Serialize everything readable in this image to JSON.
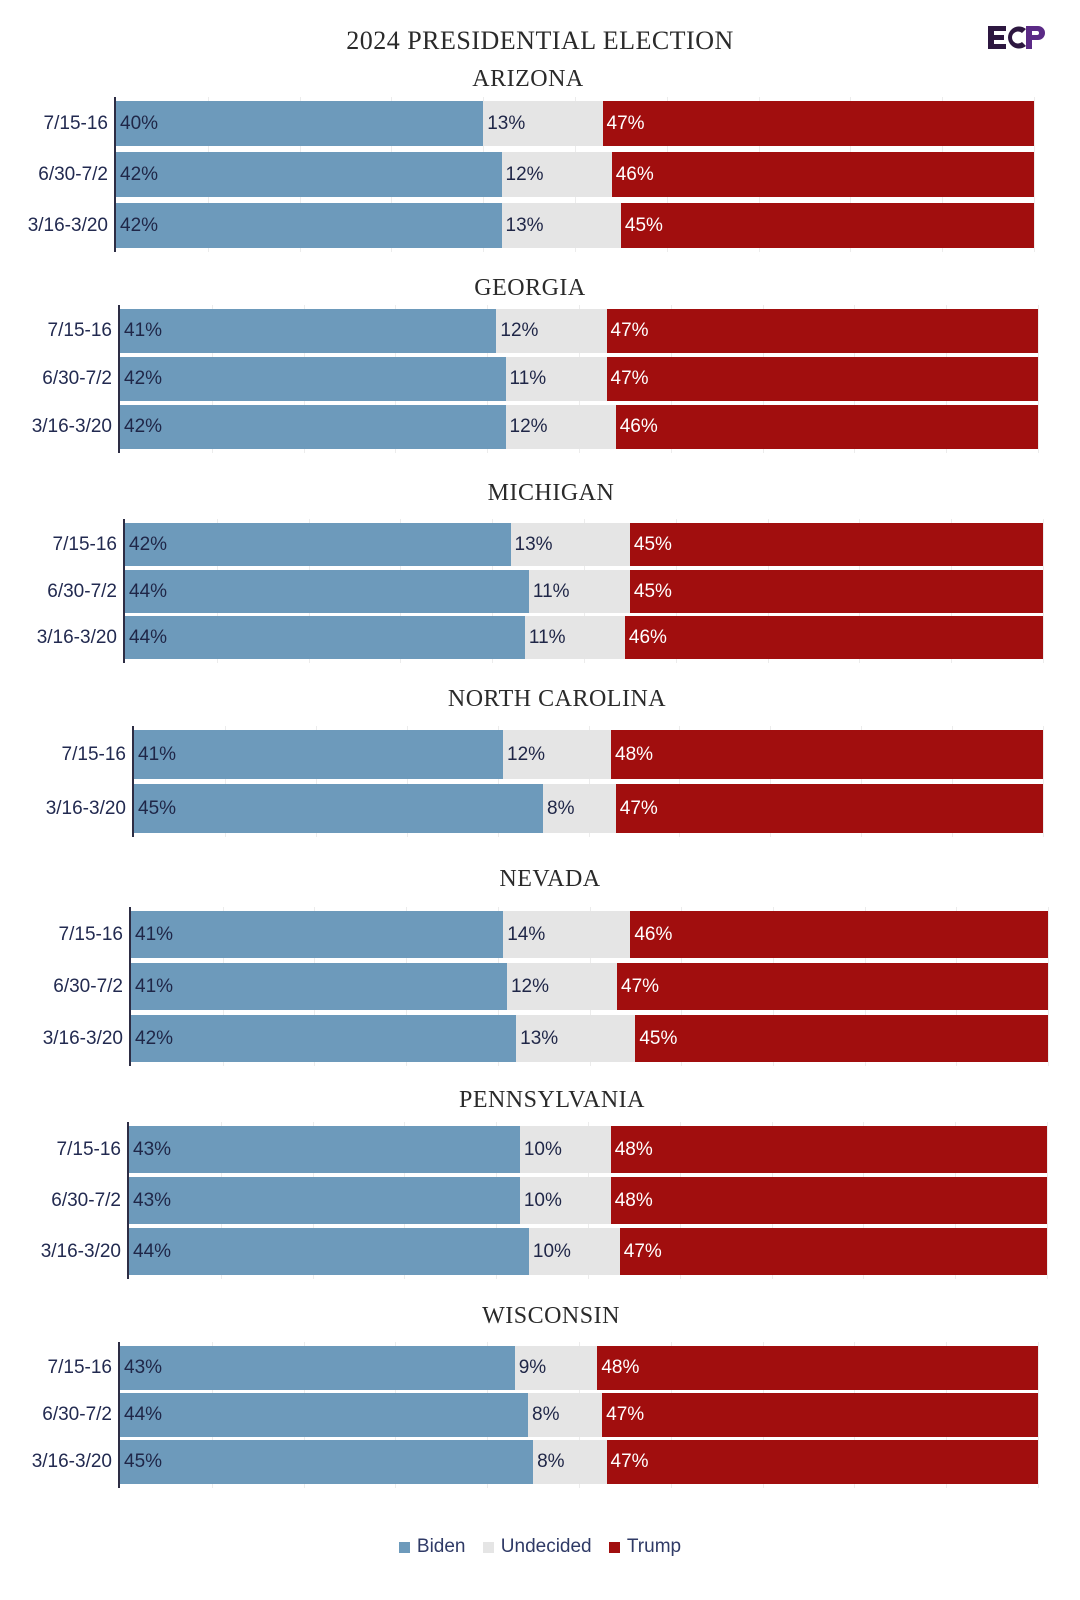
{
  "title": "2024 PRESIDENTIAL ELECTION",
  "logo_text": "ECP",
  "colors": {
    "biden": "#6d9abb",
    "undecided": "#e5e5e5",
    "trump": "#a10e0e"
  },
  "legend": [
    {
      "key": "biden",
      "label": "Biden"
    },
    {
      "key": "undecided",
      "label": "Undecided"
    },
    {
      "key": "trump",
      "label": "Trump"
    }
  ],
  "chart_data": {
    "type": "bar",
    "orientation": "horizontal-stacked-100",
    "series_order": [
      "Biden",
      "Undecided",
      "Trump"
    ],
    "states": [
      {
        "name": "ARIZONA",
        "rows": [
          {
            "label": "7/15-16",
            "biden": 40,
            "undecided": 13,
            "trump": 47
          },
          {
            "label": "6/30-7/2",
            "biden": 42,
            "undecided": 12,
            "trump": 46
          },
          {
            "label": "3/16-3/20",
            "biden": 42,
            "undecided": 13,
            "trump": 45
          }
        ]
      },
      {
        "name": "GEORGIA",
        "rows": [
          {
            "label": "7/15-16",
            "biden": 41,
            "undecided": 12,
            "trump": 47
          },
          {
            "label": "6/30-7/2",
            "biden": 42,
            "undecided": 11,
            "trump": 47
          },
          {
            "label": "3/16-3/20",
            "biden": 42,
            "undecided": 12,
            "trump": 46
          }
        ]
      },
      {
        "name": "MICHIGAN",
        "rows": [
          {
            "label": "7/15-16",
            "biden": 42,
            "undecided": 13,
            "trump": 45
          },
          {
            "label": "6/30-7/2",
            "biden": 44,
            "undecided": 11,
            "trump": 45
          },
          {
            "label": "3/16-3/20",
            "biden": 44,
            "undecided": 11,
            "trump": 46
          }
        ]
      },
      {
        "name": "NORTH CAROLINA",
        "rows": [
          {
            "label": "7/15-16",
            "biden": 41,
            "undecided": 12,
            "trump": 48
          },
          {
            "label": "3/16-3/20",
            "biden": 45,
            "undecided": 8,
            "trump": 47
          }
        ]
      },
      {
        "name": "NEVADA",
        "rows": [
          {
            "label": "7/15-16",
            "biden": 41,
            "undecided": 14,
            "trump": 46
          },
          {
            "label": "6/30-7/2",
            "biden": 41,
            "undecided": 12,
            "trump": 47
          },
          {
            "label": "3/16-3/20",
            "biden": 42,
            "undecided": 13,
            "trump": 45
          }
        ]
      },
      {
        "name": "PENNSYLVANIA",
        "rows": [
          {
            "label": "7/15-16",
            "biden": 43,
            "undecided": 10,
            "trump": 48
          },
          {
            "label": "6/30-7/2",
            "biden": 43,
            "undecided": 10,
            "trump": 48
          },
          {
            "label": "3/16-3/20",
            "biden": 44,
            "undecided": 10,
            "trump": 47
          }
        ]
      },
      {
        "name": "WISCONSIN",
        "rows": [
          {
            "label": "7/15-16",
            "biden": 43,
            "undecided": 9,
            "trump": 48
          },
          {
            "label": "6/30-7/2",
            "biden": 44,
            "undecided": 8,
            "trump": 47
          },
          {
            "label": "3/16-3/20",
            "biden": 45,
            "undecided": 8,
            "trump": 47
          }
        ]
      }
    ]
  }
}
